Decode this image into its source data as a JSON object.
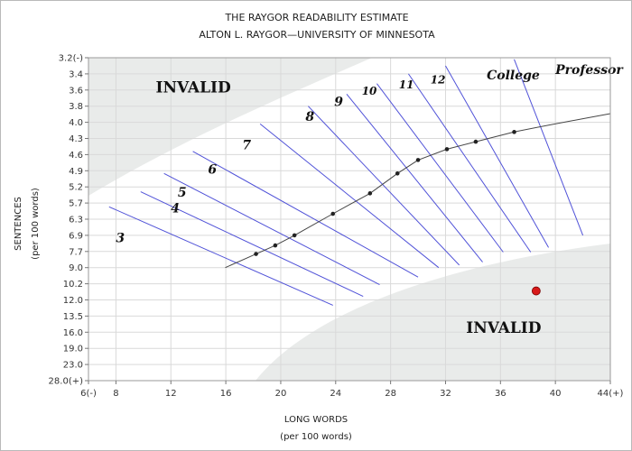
{
  "chart_data": {
    "type": "line",
    "title": "THE RAYGOR READABILITY ESTIMATE",
    "subtitle": "ALTON L. RAYGOR—UNIVERSITY OF MINNESOTA",
    "xlabel": "LONG WORDS",
    "xlabel_sub": "(per 100 words)",
    "ylabel": "SENTENCES",
    "ylabel_sub": "(per 100 words)",
    "xlim": [
      6,
      44
    ],
    "x_ticks": [
      {
        "v": 6,
        "t": "6(-)"
      },
      {
        "v": 8,
        "t": "8"
      },
      {
        "v": 12,
        "t": "12"
      },
      {
        "v": 16,
        "t": "16"
      },
      {
        "v": 20,
        "t": "20"
      },
      {
        "v": 24,
        "t": "24"
      },
      {
        "v": 28,
        "t": "28"
      },
      {
        "v": 32,
        "t": "32"
      },
      {
        "v": 36,
        "t": "36"
      },
      {
        "v": 40,
        "t": "40"
      },
      {
        "v": 44,
        "t": "44(+)"
      }
    ],
    "y_ticks": [
      "3.2(-)",
      "3.4",
      "3.6",
      "3.8",
      "4.0",
      "4.3",
      "4.6",
      "4.9",
      "5.2",
      "5.7",
      "6.3",
      "6.9",
      "7.7",
      "9.0",
      "10.2",
      "12.0",
      "13.5",
      "16.0",
      "19.0",
      "23.0",
      "28.0(+)"
    ],
    "grid": true,
    "curve_points": [
      {
        "x": 18.2,
        "y": 7.9
      },
      {
        "x": 19.6,
        "y": 7.4
      },
      {
        "x": 21.0,
        "y": 6.9
      },
      {
        "x": 23.8,
        "y": 6.1
      },
      {
        "x": 26.5,
        "y": 5.4
      },
      {
        "x": 28.5,
        "y": 4.95
      },
      {
        "x": 30.0,
        "y": 4.7
      },
      {
        "x": 32.1,
        "y": 4.5
      },
      {
        "x": 34.2,
        "y": 4.36
      },
      {
        "x": 37.0,
        "y": 4.18
      }
    ],
    "grade_lines": [
      {
        "x1": 7.5,
        "y1": 5.84,
        "x2": 23.8,
        "y2": 12.5
      },
      {
        "x1": 9.8,
        "y1": 5.35,
        "x2": 26.0,
        "y2": 11.6
      },
      {
        "x1": 11.5,
        "y1": 4.95,
        "x2": 27.2,
        "y2": 10.3
      },
      {
        "x1": 13.6,
        "y1": 4.54,
        "x2": 30.0,
        "y2": 9.7
      },
      {
        "x1": 18.5,
        "y1": 4.03,
        "x2": 31.5,
        "y2": 9.0
      },
      {
        "x1": 22.0,
        "y1": 3.8,
        "x2": 33.0,
        "y2": 8.8
      },
      {
        "x1": 24.8,
        "y1": 3.65,
        "x2": 34.7,
        "y2": 8.55
      },
      {
        "x1": 27.0,
        "y1": 3.52,
        "x2": 36.2,
        "y2": 7.75
      },
      {
        "x1": 29.3,
        "y1": 3.4,
        "x2": 38.2,
        "y2": 7.75
      },
      {
        "x1": 32.0,
        "y1": 3.3,
        "x2": 39.5,
        "y2": 7.5
      },
      {
        "x1": 37.0,
        "y1": 3.22,
        "x2": 42.0,
        "y2": 6.9
      }
    ],
    "grade_labels": [
      {
        "text": "3",
        "x": 8.0,
        "y": 7.25,
        "size": 14
      },
      {
        "text": "4",
        "x": 12.0,
        "y": 6.05,
        "size": 14
      },
      {
        "text": "5",
        "x": 12.5,
        "y": 5.5,
        "size": 14
      },
      {
        "text": "6",
        "x": 14.7,
        "y": 4.95,
        "size": 14
      },
      {
        "text": "7",
        "x": 17.2,
        "y": 4.5,
        "size": 14
      },
      {
        "text": "8",
        "x": 21.8,
        "y": 3.98,
        "size": 14
      },
      {
        "text": "9",
        "x": 23.9,
        "y": 3.8,
        "size": 14
      },
      {
        "text": "10",
        "x": 25.9,
        "y": 3.66,
        "size": 12
      },
      {
        "text": "11",
        "x": 28.6,
        "y": 3.58,
        "size": 12
      },
      {
        "text": "12",
        "x": 30.9,
        "y": 3.52,
        "size": 12
      },
      {
        "text": "College",
        "x": 35.0,
        "y": 3.47,
        "size": 14
      },
      {
        "text": "Professor",
        "x": 40.0,
        "y": 3.4,
        "size": 14
      }
    ],
    "invalid_labels": [
      {
        "text": "INVALID",
        "x": 10.9,
        "y": 3.63
      },
      {
        "text": "INVALID",
        "x": 33.5,
        "y": 16.1
      }
    ],
    "marker": {
      "x": 38.6,
      "y": 11.0
    }
  },
  "colors": {
    "invalid_zone": "#e9ebea",
    "grade_line": "#5052d8",
    "curve": "#454545",
    "grid": "#d9d9d9",
    "marker": "#d81a1a"
  }
}
